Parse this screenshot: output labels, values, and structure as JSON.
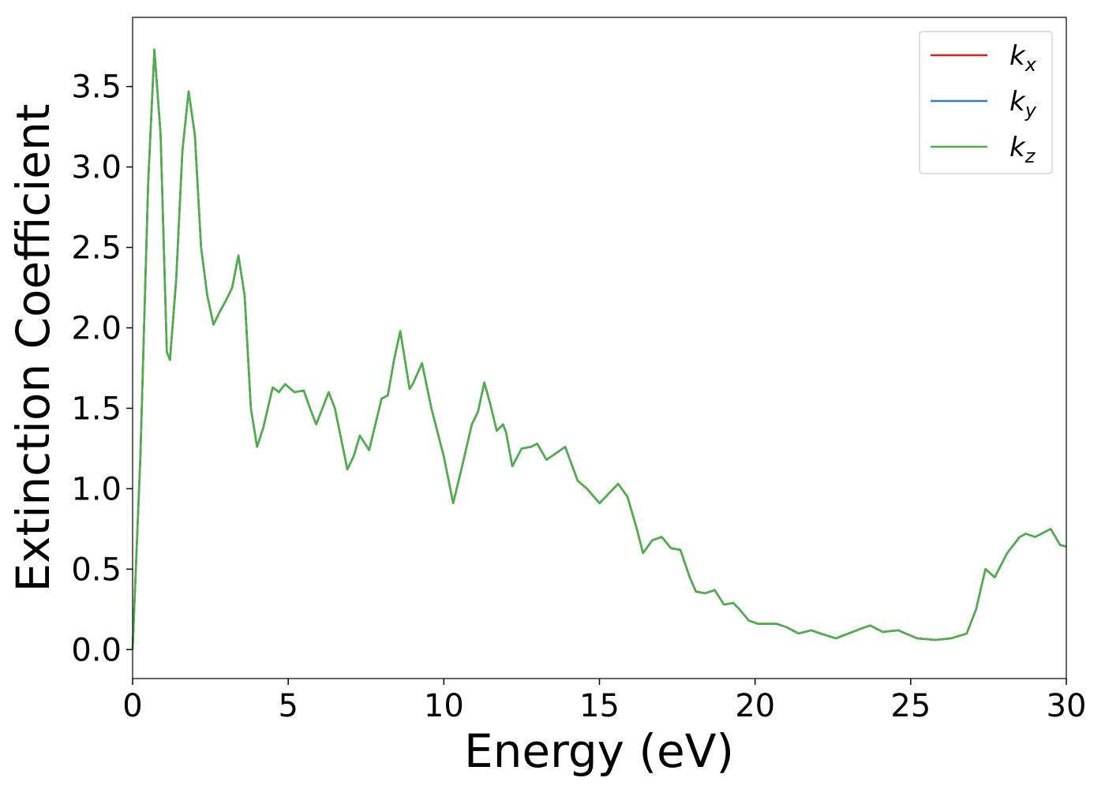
{
  "chart_data": {
    "type": "line",
    "xlabel": "Energy (eV)",
    "ylabel": "Extinction Coefficient",
    "x": [
      0,
      0.25,
      0.5,
      0.7,
      0.9,
      1.1,
      1.2,
      1.4,
      1.6,
      1.8,
      2.0,
      2.2,
      2.4,
      2.6,
      2.8,
      3.0,
      3.2,
      3.4,
      3.6,
      3.8,
      4.0,
      4.2,
      4.5,
      4.7,
      4.9,
      5.2,
      5.5,
      5.7,
      5.9,
      6.1,
      6.3,
      6.5,
      6.9,
      7.1,
      7.3,
      7.6,
      8.0,
      8.2,
      8.4,
      8.6,
      8.9,
      9.0,
      9.3,
      9.6,
      10.0,
      10.3,
      10.6,
      10.9,
      11.1,
      11.3,
      11.5,
      11.7,
      11.9,
      12.0,
      12.2,
      12.5,
      12.8,
      13.0,
      13.3,
      13.6,
      13.9,
      14.3,
      14.6,
      15.0,
      15.3,
      15.6,
      15.9,
      16.2,
      16.4,
      16.7,
      17.0,
      17.3,
      17.6,
      17.9,
      18.1,
      18.4,
      18.7,
      19.0,
      19.3,
      19.5,
      19.8,
      20.1,
      20.7,
      21.0,
      21.4,
      21.8,
      22.1,
      22.6,
      23.0,
      23.4,
      23.7,
      24.1,
      24.6,
      25.2,
      25.8,
      26.3,
      26.8,
      27.1,
      27.4,
      27.7,
      28.1,
      28.5,
      28.7,
      29.0,
      29.5,
      29.8,
      30.0
    ],
    "series": [
      {
        "name": "kx",
        "color": "#e41a1c",
        "values": [
          0,
          1.2,
          2.9,
          3.73,
          3.2,
          1.85,
          1.8,
          2.3,
          3.1,
          3.47,
          3.2,
          2.5,
          2.2,
          2.02,
          2.1,
          2.17,
          2.25,
          2.45,
          2.2,
          1.5,
          1.26,
          1.38,
          1.63,
          1.6,
          1.65,
          1.6,
          1.61,
          1.5,
          1.4,
          1.5,
          1.6,
          1.5,
          1.12,
          1.2,
          1.33,
          1.24,
          1.56,
          1.58,
          1.8,
          1.98,
          1.62,
          1.65,
          1.78,
          1.5,
          1.2,
          0.91,
          1.15,
          1.4,
          1.48,
          1.66,
          1.52,
          1.36,
          1.4,
          1.35,
          1.14,
          1.25,
          1.26,
          1.28,
          1.18,
          1.22,
          1.26,
          1.05,
          1.0,
          0.91,
          0.97,
          1.03,
          0.95,
          0.75,
          0.6,
          0.68,
          0.7,
          0.63,
          0.62,
          0.45,
          0.36,
          0.35,
          0.37,
          0.28,
          0.29,
          0.25,
          0.18,
          0.16,
          0.16,
          0.14,
          0.1,
          0.12,
          0.1,
          0.07,
          0.1,
          0.13,
          0.15,
          0.11,
          0.12,
          0.07,
          0.06,
          0.07,
          0.1,
          0.25,
          0.5,
          0.45,
          0.6,
          0.7,
          0.72,
          0.7,
          0.75,
          0.65,
          0.64
        ]
      },
      {
        "name": "ky",
        "color": "#377eb8",
        "values": [
          0,
          1.2,
          2.9,
          3.73,
          3.2,
          1.85,
          1.8,
          2.3,
          3.1,
          3.47,
          3.2,
          2.5,
          2.2,
          2.02,
          2.1,
          2.17,
          2.25,
          2.45,
          2.2,
          1.5,
          1.26,
          1.38,
          1.63,
          1.6,
          1.65,
          1.6,
          1.61,
          1.5,
          1.4,
          1.5,
          1.6,
          1.5,
          1.12,
          1.2,
          1.33,
          1.24,
          1.56,
          1.58,
          1.8,
          1.98,
          1.62,
          1.65,
          1.78,
          1.5,
          1.2,
          0.91,
          1.15,
          1.4,
          1.48,
          1.66,
          1.52,
          1.36,
          1.4,
          1.35,
          1.14,
          1.25,
          1.26,
          1.28,
          1.18,
          1.22,
          1.26,
          1.05,
          1.0,
          0.91,
          0.97,
          1.03,
          0.95,
          0.75,
          0.6,
          0.68,
          0.7,
          0.63,
          0.62,
          0.45,
          0.36,
          0.35,
          0.37,
          0.28,
          0.29,
          0.25,
          0.18,
          0.16,
          0.16,
          0.14,
          0.1,
          0.12,
          0.1,
          0.07,
          0.1,
          0.13,
          0.15,
          0.11,
          0.12,
          0.07,
          0.06,
          0.07,
          0.1,
          0.25,
          0.5,
          0.45,
          0.6,
          0.7,
          0.72,
          0.7,
          0.75,
          0.65,
          0.64
        ]
      },
      {
        "name": "kz",
        "color": "#4daf4a",
        "values": [
          0,
          1.2,
          2.9,
          3.73,
          3.2,
          1.85,
          1.8,
          2.3,
          3.1,
          3.47,
          3.2,
          2.5,
          2.2,
          2.02,
          2.1,
          2.17,
          2.25,
          2.45,
          2.2,
          1.5,
          1.26,
          1.38,
          1.63,
          1.6,
          1.65,
          1.6,
          1.61,
          1.5,
          1.4,
          1.5,
          1.6,
          1.5,
          1.12,
          1.2,
          1.33,
          1.24,
          1.56,
          1.58,
          1.8,
          1.98,
          1.62,
          1.65,
          1.78,
          1.5,
          1.2,
          0.91,
          1.15,
          1.4,
          1.48,
          1.66,
          1.52,
          1.36,
          1.4,
          1.35,
          1.14,
          1.25,
          1.26,
          1.28,
          1.18,
          1.22,
          1.26,
          1.05,
          1.0,
          0.91,
          0.97,
          1.03,
          0.95,
          0.75,
          0.6,
          0.68,
          0.7,
          0.63,
          0.62,
          0.45,
          0.36,
          0.35,
          0.37,
          0.28,
          0.29,
          0.25,
          0.18,
          0.16,
          0.16,
          0.14,
          0.1,
          0.12,
          0.1,
          0.07,
          0.1,
          0.13,
          0.15,
          0.11,
          0.12,
          0.07,
          0.06,
          0.07,
          0.1,
          0.25,
          0.5,
          0.45,
          0.6,
          0.7,
          0.72,
          0.7,
          0.75,
          0.65,
          0.64
        ]
      }
    ],
    "xlim": [
      0,
      30
    ],
    "xticks": [
      0,
      5,
      10,
      15,
      20,
      25,
      30
    ],
    "ylim": [
      -0.18,
      3.93
    ],
    "yticks": [
      {
        "value": 0,
        "label": "0.0"
      },
      0.5,
      {
        "value": 1,
        "label": "1.0"
      },
      1.5,
      {
        "value": 2,
        "label": "2.0"
      },
      2.5,
      {
        "value": 3,
        "label": "3.0"
      },
      3.5
    ],
    "legend": "upper right",
    "grid": false
  }
}
